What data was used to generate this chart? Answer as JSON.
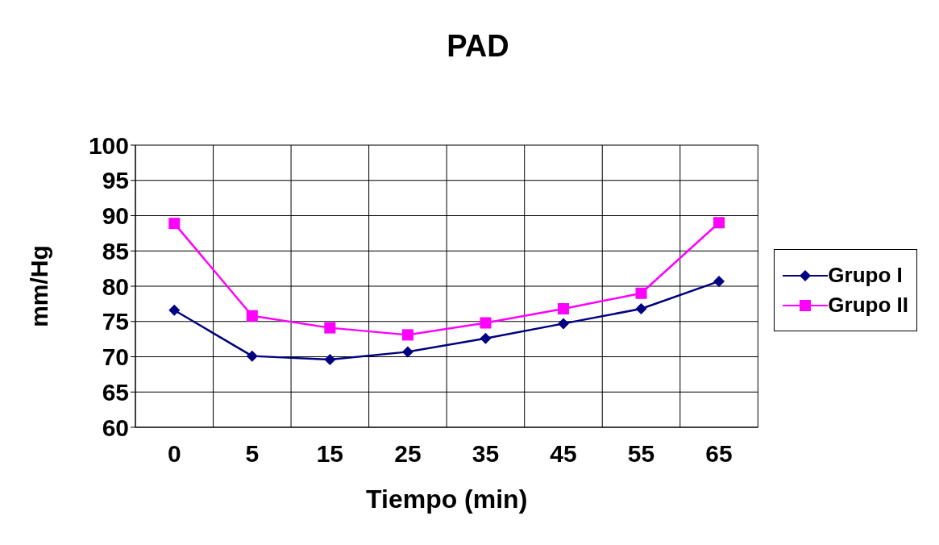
{
  "chart_data": {
    "type": "line",
    "title": "PAD",
    "xlabel": "Tiempo (min)",
    "ylabel": "mm/Hg",
    "categories": [
      "0",
      "5",
      "15",
      "25",
      "35",
      "45",
      "55",
      "65"
    ],
    "series": [
      {
        "name": "Grupo I",
        "color": "#000080",
        "marker": "diamond",
        "values": [
          76.6,
          70.1,
          69.6,
          70.7,
          72.6,
          74.7,
          76.8,
          80.7
        ]
      },
      {
        "name": "Grupo II",
        "color": "#ff00ff",
        "marker": "square",
        "values": [
          88.9,
          75.8,
          74.1,
          73.1,
          74.8,
          76.8,
          79.0,
          89.0
        ]
      }
    ],
    "ylim": [
      60,
      100
    ],
    "yticks": [
      60,
      65,
      70,
      75,
      80,
      85,
      90,
      95,
      100
    ],
    "grid": true,
    "legend": "right",
    "line_style": "solid"
  }
}
